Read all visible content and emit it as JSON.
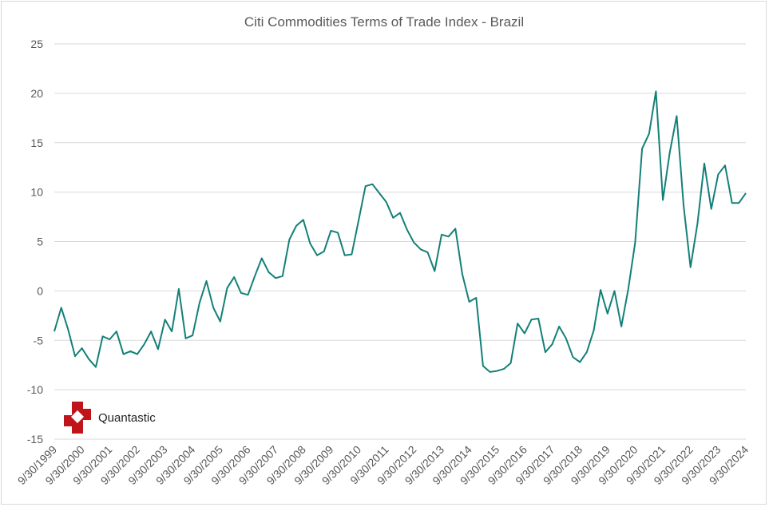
{
  "chart_data": {
    "type": "line",
    "title": "Citi Commodities Terms of Trade Index - Brazil",
    "xlabel": "",
    "ylabel": "",
    "ylim": [
      -15,
      25
    ],
    "yticks": [
      25,
      20,
      15,
      10,
      5,
      0,
      -5,
      -10,
      -15
    ],
    "ytick_labels": [
      "25",
      "20",
      "15",
      "10",
      "5",
      "0",
      "-5",
      "-10",
      "-15"
    ],
    "x_tick_labels": [
      "9/30/1999",
      "9/30/2000",
      "9/30/2001",
      "9/30/2002",
      "9/30/2003",
      "9/30/2004",
      "9/30/2005",
      "9/30/2006",
      "9/30/2007",
      "9/30/2008",
      "9/30/2009",
      "9/30/2010",
      "9/30/2011",
      "9/30/2012",
      "9/30/2013",
      "9/30/2014",
      "9/30/2015",
      "9/30/2016",
      "9/30/2017",
      "9/30/2018",
      "9/30/2019",
      "9/30/2020",
      "9/30/2021",
      "9/30/2022",
      "9/30/2023",
      "9/30/2024"
    ],
    "x_range": [
      1999.75,
      2024.75
    ],
    "grid": true,
    "legend": "none",
    "series": [
      {
        "name": "Brazil",
        "color": "#138078",
        "x": [
          1999.75,
          2000.0,
          2000.25,
          2000.5,
          2000.75,
          2001.0,
          2001.25,
          2001.5,
          2001.75,
          2002.0,
          2002.25,
          2002.5,
          2002.75,
          2003.0,
          2003.25,
          2003.5,
          2003.75,
          2004.0,
          2004.25,
          2004.5,
          2004.75,
          2005.0,
          2005.25,
          2005.5,
          2005.75,
          2006.0,
          2006.25,
          2006.5,
          2006.75,
          2007.0,
          2007.25,
          2007.5,
          2007.75,
          2008.0,
          2008.25,
          2008.5,
          2008.75,
          2009.0,
          2009.25,
          2009.5,
          2009.75,
          2010.0,
          2010.25,
          2010.5,
          2010.75,
          2011.0,
          2011.25,
          2011.5,
          2011.75,
          2012.0,
          2012.25,
          2012.5,
          2012.75,
          2013.0,
          2013.25,
          2013.5,
          2013.75,
          2014.0,
          2014.25,
          2014.5,
          2014.75,
          2015.0,
          2015.25,
          2015.5,
          2015.75,
          2016.0,
          2016.25,
          2016.5,
          2016.75,
          2017.0,
          2017.25,
          2017.5,
          2017.75,
          2018.0,
          2018.25,
          2018.5,
          2018.75,
          2019.0,
          2019.25,
          2019.5,
          2019.75,
          2020.0,
          2020.25,
          2020.5,
          2020.75,
          2021.0,
          2021.25,
          2021.5,
          2021.75,
          2022.0,
          2022.25,
          2022.5,
          2022.75,
          2023.0,
          2023.25,
          2023.5,
          2023.75,
          2024.0,
          2024.25,
          2024.5,
          2024.75
        ],
        "values": [
          -4.1,
          -1.7,
          -3.9,
          -6.6,
          -5.8,
          -6.9,
          -7.7,
          -4.6,
          -4.9,
          -4.1,
          -6.4,
          -6.1,
          -6.4,
          -5.4,
          -4.1,
          -5.9,
          -2.9,
          -4.1,
          0.2,
          -4.8,
          -4.5,
          -1.2,
          1.0,
          -1.7,
          -3.1,
          0.3,
          1.4,
          -0.2,
          -0.4,
          1.5,
          3.3,
          1.9,
          1.3,
          1.5,
          5.2,
          6.6,
          7.2,
          4.8,
          3.6,
          4.0,
          6.1,
          5.9,
          3.6,
          3.7,
          7.1,
          10.6,
          10.8,
          9.9,
          9.0,
          7.4,
          7.9,
          6.2,
          4.9,
          4.2,
          3.9,
          2.0,
          5.7,
          5.5,
          6.3,
          1.7,
          -1.1,
          -0.7,
          -7.6,
          -8.2,
          -8.1,
          -7.9,
          -7.3,
          -3.3,
          -4.3,
          -2.9,
          -2.8,
          -6.2,
          -5.4,
          -3.6,
          -4.8,
          -6.7,
          -7.2,
          -6.2,
          -4.0,
          0.1,
          -2.3,
          0.0,
          -3.6,
          0.2,
          4.9,
          14.4,
          15.9,
          20.2,
          9.2,
          14.0,
          17.7,
          8.6,
          2.4,
          6.8,
          12.9,
          8.3,
          11.8,
          12.7,
          8.9,
          8.9,
          9.9
        ]
      }
    ]
  },
  "logo": {
    "text": "Quantastic",
    "color": "#c0141b"
  }
}
